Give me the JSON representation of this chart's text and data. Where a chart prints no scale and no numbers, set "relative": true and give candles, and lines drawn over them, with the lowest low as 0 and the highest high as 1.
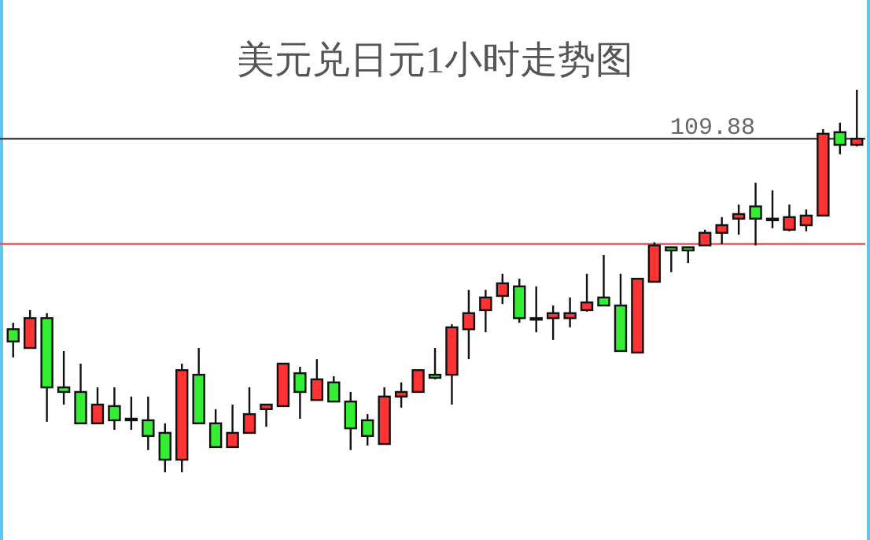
{
  "chart_data": {
    "type": "candlestick",
    "title": "美元兑日元1小时走势图",
    "relative": true,
    "categories": [
      null,
      null,
      null,
      null,
      null,
      null,
      null,
      null,
      null,
      null,
      null,
      null,
      null,
      null,
      null,
      null,
      null,
      null,
      null,
      null,
      null,
      null,
      null,
      null,
      null,
      null,
      null,
      null,
      null,
      null,
      null,
      null,
      null,
      null,
      null,
      null,
      null,
      null,
      null,
      null,
      null,
      null,
      null,
      null,
      null,
      null,
      null,
      null,
      null,
      null,
      null
    ],
    "ohlc": [
      [
        0.374,
        0.391,
        0.3,
        0.342
      ],
      [
        0.325,
        0.424,
        0.325,
        0.403
      ],
      [
        0.403,
        0.416,
        0.132,
        0.222
      ],
      [
        0.222,
        0.317,
        0.177,
        0.21
      ],
      [
        0.21,
        0.284,
        0.128,
        0.128
      ],
      [
        0.128,
        0.222,
        0.128,
        0.177
      ],
      [
        0.173,
        0.222,
        0.111,
        0.136
      ],
      [
        0.14,
        0.198,
        0.111,
        0.136
      ],
      [
        0.136,
        0.198,
        0.058,
        0.095
      ],
      [
        0.103,
        0.128,
        0,
        0.033
      ],
      [
        0.033,
        0.284,
        0,
        0.267
      ],
      [
        0.255,
        0.325,
        0.128,
        0.128
      ],
      [
        0.128,
        0.165,
        0.066,
        0.066
      ],
      [
        0.066,
        0.177,
        0.066,
        0.103
      ],
      [
        0.103,
        0.222,
        0.103,
        0.152
      ],
      [
        0.165,
        0.177,
        0.119,
        0.177
      ],
      [
        0.173,
        0.284,
        0.173,
        0.284
      ],
      [
        0.259,
        0.276,
        0.14,
        0.21
      ],
      [
        0.189,
        0.296,
        0.189,
        0.243
      ],
      [
        0.235,
        0.251,
        0.185,
        0.185
      ],
      [
        0.185,
        0.21,
        0.058,
        0.115
      ],
      [
        0.136,
        0.152,
        0.07,
        0.095
      ],
      [
        0.074,
        0.222,
        0.074,
        0.198
      ],
      [
        0.198,
        0.235,
        0.169,
        0.21
      ],
      [
        0.21,
        0.267,
        0.21,
        0.267
      ],
      [
        0.255,
        0.325,
        0.243,
        0.247
      ],
      [
        0.255,
        0.387,
        0.177,
        0.379
      ],
      [
        0.374,
        0.477,
        0.296,
        0.416
      ],
      [
        0.424,
        0.477,
        0.366,
        0.457
      ],
      [
        0.461,
        0.519,
        0.44,
        0.494
      ],
      [
        0.486,
        0.506,
        0.391,
        0.403
      ],
      [
        0.403,
        0.486,
        0.366,
        0.403
      ],
      [
        0.403,
        0.436,
        0.346,
        0.416
      ],
      [
        0.403,
        0.457,
        0.379,
        0.416
      ],
      [
        0.424,
        0.519,
        0.42,
        0.444
      ],
      [
        0.457,
        0.568,
        0.436,
        0.436
      ],
      [
        0.436,
        0.519,
        0.317,
        0.317
      ],
      [
        0.313,
        0.506,
        0.313,
        0.506
      ],
      [
        0.498,
        0.601,
        0.498,
        0.593
      ],
      [
        0.588,
        0.588,
        0.523,
        0.58
      ],
      [
        0.588,
        0.588,
        0.547,
        0.58
      ],
      [
        0.593,
        0.634,
        0.593,
        0.626
      ],
      [
        0.626,
        0.667,
        0.597,
        0.646
      ],
      [
        0.663,
        0.7,
        0.621,
        0.675
      ],
      [
        0.695,
        0.757,
        0.593,
        0.663
      ],
      [
        0.663,
        0.737,
        0.638,
        0.663
      ],
      [
        0.634,
        0.7,
        0.63,
        0.667
      ],
      [
        0.646,
        0.687,
        0.63,
        0.671
      ],
      [
        0.671,
        0.897,
        0.671,
        0.885
      ],
      [
        0.889,
        0.914,
        0.831,
        0.856
      ],
      [
        0.856,
        1.0,
        0.852,
        0.872
      ]
    ],
    "colors": [
      "#33ee33",
      "#ff3333",
      "#33ee33",
      "#33ee33",
      "#33ee33",
      "#ff3333",
      "#33ee33",
      "#33ee33",
      "#33ee33",
      "#33ee33",
      "#ff3333",
      "#33ee33",
      "#33ee33",
      "#ff3333",
      "#ff3333",
      "#ff3333",
      "#ff3333",
      "#33ee33",
      "#ff3333",
      "#33ee33",
      "#33ee33",
      "#33ee33",
      "#ff3333",
      "#ff3333",
      "#ff3333",
      "#33ee33",
      "#ff3333",
      "#ff3333",
      "#ff3333",
      "#ff3333",
      "#33ee33",
      "#33ee33",
      "#ff3333",
      "#ff3333",
      "#ff3333",
      "#33ee33",
      "#33ee33",
      "#ff3333",
      "#ff3333",
      "#33ee33",
      "#33ee33",
      "#ff3333",
      "#ff3333",
      "#ff3333",
      "#33ee33",
      "#33ee33",
      "#ff3333",
      "#ff3333",
      "#ff3333",
      "#33ee33",
      "#ff3333"
    ],
    "annotations": [
      "109.88"
    ],
    "ref_lines": [
      {
        "axis": "y",
        "value": 0.872,
        "color": "#444444"
      },
      {
        "axis": "y",
        "value": 0.597,
        "color": "#e06060"
      }
    ]
  }
}
